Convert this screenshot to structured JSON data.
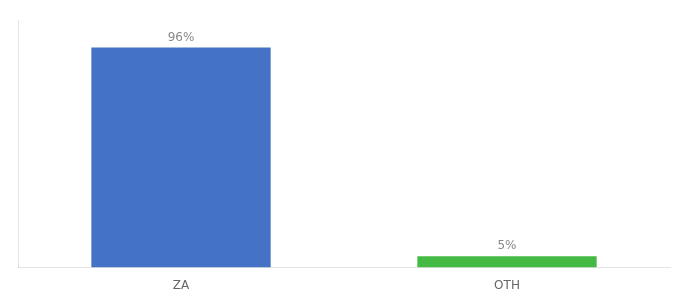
{
  "chart_data": {
    "type": "bar",
    "categories": [
      "ZA",
      "OTH"
    ],
    "values": [
      96,
      5
    ],
    "value_labels": [
      "96%",
      "5%"
    ],
    "colors": [
      "#4472c4",
      "#44b944"
    ],
    "ylim": [
      0,
      108
    ],
    "grid": false,
    "data_labels": true,
    "tick_labels": "x"
  }
}
